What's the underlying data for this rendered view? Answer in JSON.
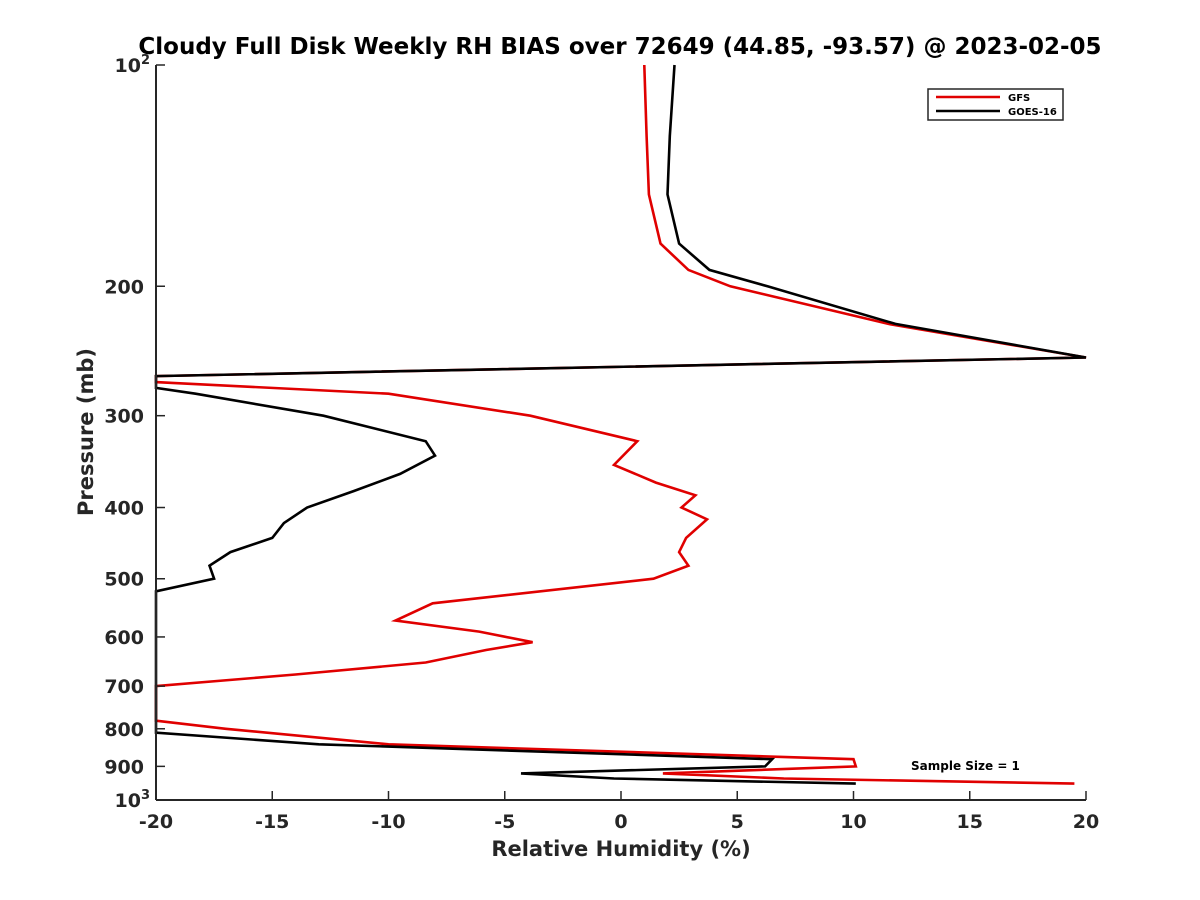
{
  "chart_data": {
    "type": "line",
    "title": "Cloudy Full Disk Weekly RH BIAS over 72649 (44.85, -93.57) @ 2023-02-05",
    "xlabel": "Relative Humidity (%)",
    "ylabel": "Pressure (mb)",
    "xlim": [
      -20,
      20
    ],
    "ylim": [
      100,
      1000
    ],
    "y_scale": "log",
    "y_reversed": true,
    "x_ticks": [
      "-20",
      "-15",
      "-10",
      "-5",
      "0",
      "5",
      "10",
      "15",
      "20"
    ],
    "y_ticks": [
      {
        "value": 100,
        "base": "10",
        "exp": "2"
      },
      {
        "value": 200,
        "label": "200"
      },
      {
        "value": 300,
        "label": "300"
      },
      {
        "value": 400,
        "label": "400"
      },
      {
        "value": 500,
        "label": "500"
      },
      {
        "value": 600,
        "label": "600"
      },
      {
        "value": 700,
        "label": "700"
      },
      {
        "value": 800,
        "label": "800"
      },
      {
        "value": 900,
        "label": "900"
      },
      {
        "value": 1000,
        "base": "10",
        "exp": "3"
      }
    ],
    "grid": false,
    "legend_position": "top-right",
    "annotation": "Sample Size = 1",
    "series": [
      {
        "name": "GFS",
        "color": "#e00000",
        "points": [
          [
            1.0,
            100
          ],
          [
            1.1,
            125
          ],
          [
            1.2,
            150
          ],
          [
            1.7,
            175
          ],
          [
            2.9,
            190
          ],
          [
            4.7,
            200
          ],
          [
            11.5,
            225
          ],
          [
            20.0,
            250
          ],
          [
            -20.0,
            265
          ],
          [
            -20.0,
            270
          ],
          [
            -10.0,
            280
          ],
          [
            -3.9,
            300
          ],
          [
            0.7,
            325
          ],
          [
            -0.3,
            350
          ],
          [
            1.5,
            370
          ],
          [
            3.2,
            385
          ],
          [
            2.6,
            400
          ],
          [
            3.7,
            415
          ],
          [
            2.8,
            440
          ],
          [
            2.5,
            460
          ],
          [
            2.9,
            480
          ],
          [
            1.4,
            500
          ],
          [
            -8.1,
            540
          ],
          [
            -9.7,
            570
          ],
          [
            -6.1,
            590
          ],
          [
            -3.8,
            610
          ],
          [
            -5.8,
            625
          ],
          [
            -8.4,
            650
          ],
          [
            -14.0,
            675
          ],
          [
            -20.0,
            700
          ],
          [
            -20.0,
            780
          ],
          [
            -17.0,
            800
          ],
          [
            -10.0,
            840
          ],
          [
            10.0,
            880
          ],
          [
            10.1,
            900
          ],
          [
            1.8,
            920
          ],
          [
            7.0,
            935
          ],
          [
            19.5,
            950
          ]
        ]
      },
      {
        "name": "GOES-16",
        "color": "#000000",
        "points": [
          [
            2.3,
            100
          ],
          [
            2.1,
            125
          ],
          [
            2.0,
            150
          ],
          [
            2.5,
            175
          ],
          [
            3.8,
            190
          ],
          [
            6.3,
            200
          ],
          [
            11.8,
            225
          ],
          [
            20.0,
            250
          ],
          [
            -20.0,
            265
          ],
          [
            -20.0,
            275
          ],
          [
            -18.3,
            280
          ],
          [
            -12.8,
            300
          ],
          [
            -8.4,
            325
          ],
          [
            -8.0,
            340
          ],
          [
            -9.5,
            360
          ],
          [
            -11.5,
            380
          ],
          [
            -13.5,
            400
          ],
          [
            -14.5,
            420
          ],
          [
            -15.0,
            440
          ],
          [
            -16.8,
            460
          ],
          [
            -17.7,
            480
          ],
          [
            -17.5,
            500
          ],
          [
            -20.0,
            520
          ],
          [
            -20.0,
            810
          ],
          [
            -13.0,
            840
          ],
          [
            6.5,
            880
          ],
          [
            6.2,
            900
          ],
          [
            -4.3,
            920
          ],
          [
            -0.3,
            935
          ],
          [
            10.1,
            950
          ]
        ]
      }
    ]
  }
}
